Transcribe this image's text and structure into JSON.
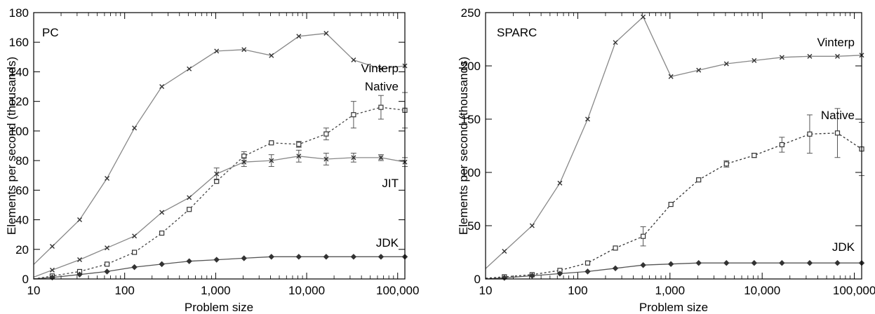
{
  "chart_data": [
    {
      "type": "line",
      "title": "PC",
      "xlabel": "Problem size",
      "ylabel": "Elements per second (thousands)",
      "xscale": "log",
      "xlim": [
        10,
        120000
      ],
      "ylim": [
        0,
        180
      ],
      "x_ticks": [
        10,
        100,
        1000,
        10000,
        100000
      ],
      "x_tick_labels": [
        "10",
        "100",
        "1,000",
        "10,000",
        "100,000"
      ],
      "y_ticks": [
        0,
        20,
        40,
        60,
        80,
        100,
        120,
        140,
        160,
        180
      ],
      "y_tick_labels": [
        "0",
        "20",
        "40",
        "60",
        "80",
        "100",
        "120",
        "140",
        "160",
        "180"
      ],
      "grid": false,
      "series": [
        {
          "name": "Vinterp",
          "color": "#888888",
          "dash": "",
          "marker": "x",
          "x": [
            16,
            32,
            64,
            128,
            256,
            512,
            1024,
            2048,
            4096,
            8192,
            16384,
            32768,
            65536,
            120000
          ],
          "y": [
            22,
            40,
            68,
            102,
            130,
            142,
            154,
            155,
            151,
            164,
            166,
            148,
            142,
            144
          ],
          "err": [
            0,
            0,
            0,
            0,
            0,
            0,
            0,
            0,
            0,
            0,
            0,
            0,
            0,
            0
          ]
        },
        {
          "name": "Native",
          "color": "#444444",
          "dash": "3,3",
          "marker": "square",
          "x": [
            16,
            32,
            64,
            128,
            256,
            512,
            1024,
            2048,
            4096,
            8192,
            16384,
            32768,
            65536,
            120000
          ],
          "y": [
            2,
            5,
            10,
            18,
            31,
            47,
            66,
            83,
            92,
            91,
            98,
            111,
            116,
            114
          ],
          "err": [
            0,
            0,
            0,
            0,
            0,
            0,
            0,
            3,
            0,
            2,
            4,
            9,
            8,
            12
          ]
        },
        {
          "name": "JIT",
          "color": "#888888",
          "dash": "",
          "marker": "x",
          "x": [
            16,
            32,
            64,
            128,
            256,
            512,
            1024,
            2048,
            4096,
            8192,
            16384,
            32768,
            65536,
            120000
          ],
          "y": [
            6,
            13,
            21,
            29,
            45,
            55,
            71,
            79,
            80,
            83,
            81,
            82,
            82,
            79
          ],
          "err": [
            0,
            0,
            0,
            0,
            0,
            0,
            4,
            3,
            4,
            4,
            4,
            3,
            2,
            3
          ]
        },
        {
          "name": "JDK",
          "color": "#555555",
          "dash": "",
          "marker": "diamond",
          "x": [
            16,
            32,
            64,
            128,
            256,
            512,
            1024,
            2048,
            4096,
            8192,
            16384,
            32768,
            65536,
            120000
          ],
          "y": [
            1,
            3,
            5,
            8,
            10,
            12,
            13,
            14,
            15,
            15,
            15,
            15,
            15,
            15
          ],
          "err": [
            0,
            0,
            0,
            0,
            0,
            0,
            0,
            0,
            0,
            0,
            0,
            0,
            0,
            0
          ]
        }
      ]
    },
    {
      "type": "line",
      "title": "SPARC",
      "xlabel": "Problem size",
      "ylabel": "Elements per second (thousands)",
      "xscale": "log",
      "xlim": [
        10,
        120000
      ],
      "ylim": [
        0,
        250
      ],
      "x_ticks": [
        10,
        100,
        1000,
        10000,
        100000
      ],
      "x_tick_labels": [
        "10",
        "100",
        "1,000",
        "10,000",
        "100,000"
      ],
      "y_ticks": [
        0,
        50,
        100,
        150,
        200,
        250
      ],
      "y_tick_labels": [
        "0",
        "50",
        "100",
        "150",
        "200",
        "250"
      ],
      "grid": false,
      "series": [
        {
          "name": "Vinterp",
          "color": "#888888",
          "dash": "",
          "marker": "x",
          "x": [
            16,
            32,
            64,
            128,
            256,
            512,
            1024,
            2048,
            4096,
            8192,
            16384,
            32768,
            65536,
            120000
          ],
          "y": [
            26,
            50,
            90,
            150,
            222,
            246,
            190,
            196,
            202,
            205,
            208,
            209,
            209,
            210
          ],
          "err": [
            0,
            0,
            0,
            0,
            0,
            0,
            0,
            0,
            0,
            0,
            0,
            0,
            0,
            0
          ]
        },
        {
          "name": "Native",
          "color": "#333333",
          "dash": "3,3",
          "marker": "square",
          "x": [
            16,
            32,
            64,
            128,
            256,
            512,
            1024,
            2048,
            4096,
            8192,
            16384,
            32768,
            65536,
            120000
          ],
          "y": [
            2,
            4,
            8,
            15,
            29,
            40,
            70,
            93,
            108,
            116,
            126,
            136,
            137,
            122
          ],
          "err": [
            0,
            0,
            0,
            0,
            0,
            9,
            0,
            0,
            3,
            2,
            7,
            18,
            23,
            25
          ]
        },
        {
          "name": "JDK",
          "color": "#555555",
          "dash": "",
          "marker": "diamond",
          "x": [
            16,
            32,
            64,
            128,
            256,
            512,
            1024,
            2048,
            4096,
            8192,
            16384,
            32768,
            65536,
            120000
          ],
          "y": [
            1,
            3,
            5,
            7,
            10,
            13,
            14,
            15,
            15,
            15,
            15,
            15,
            15,
            15
          ],
          "err": [
            0,
            0,
            0,
            0,
            0,
            0,
            0,
            0,
            0,
            0,
            0,
            0,
            0,
            0
          ]
        }
      ]
    }
  ],
  "labels": {
    "pc_vinterp": "Vinterp",
    "pc_native": "Native",
    "pc_jit": "JIT",
    "pc_jdk": "JDK",
    "sparc_vinterp": "Vinterp",
    "sparc_native": "Native",
    "sparc_jdk": "JDK"
  }
}
